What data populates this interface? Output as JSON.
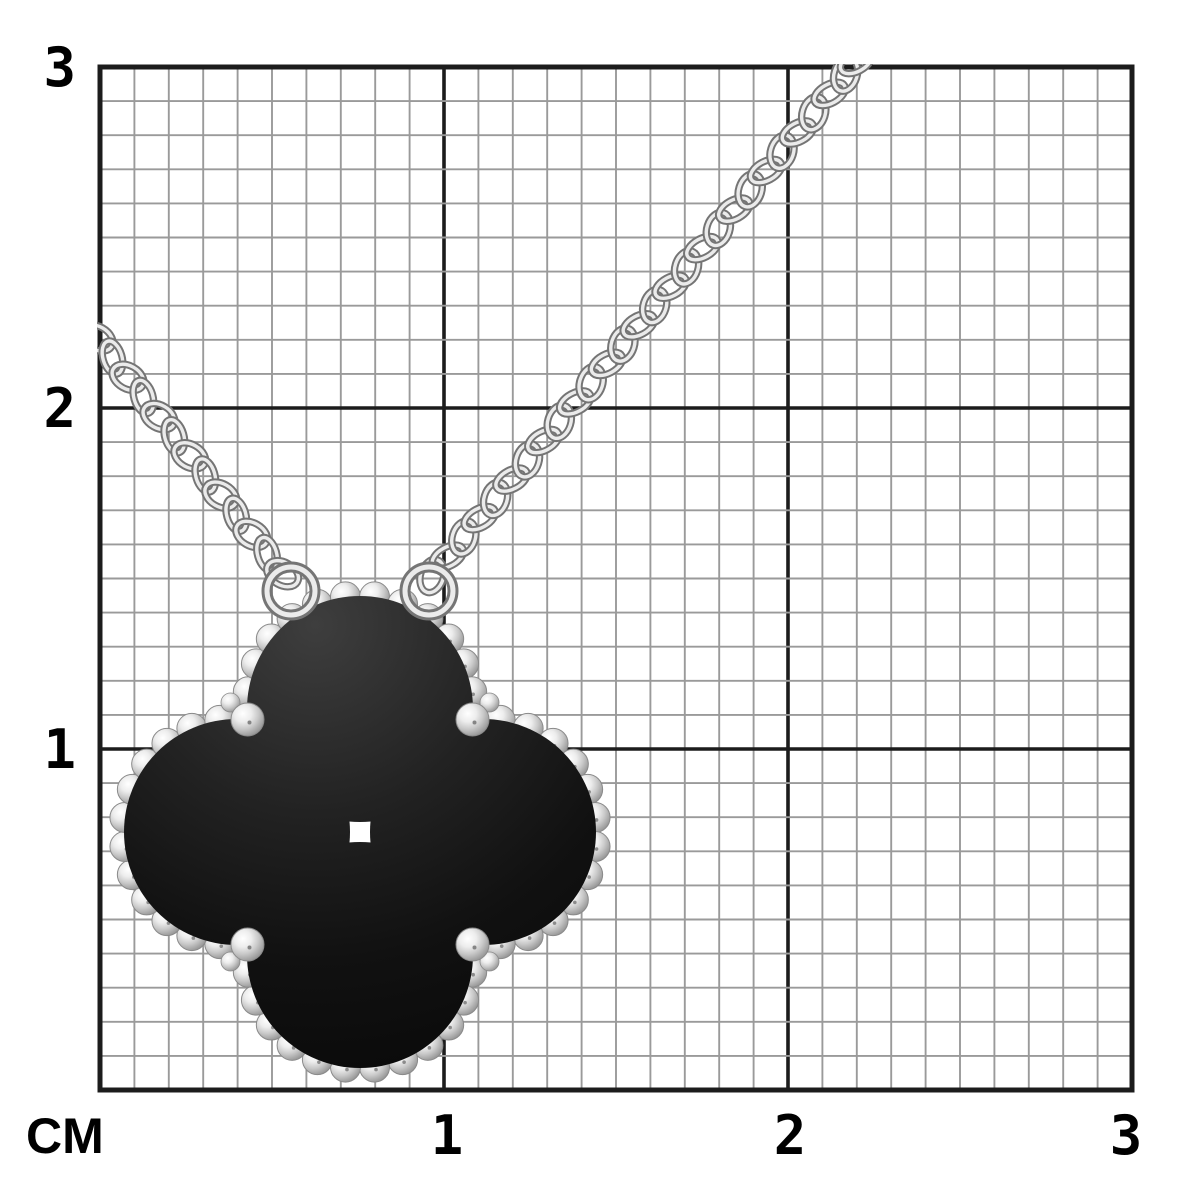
{
  "figure": {
    "kind": "product-measurement-photo",
    "subject": "clover-pendant-necklace-on-centimeter-grid"
  },
  "ruler": {
    "unit_label": "CM",
    "y_labels": [
      "3",
      "2",
      "1"
    ],
    "x_labels": [
      "1",
      "2",
      "3"
    ],
    "minor_divisions_per_cm": 10
  },
  "colors": {
    "background": "#ffffff",
    "grid_minor": "#9a9a9a",
    "grid_major": "#1c1c1c",
    "label": "#000000",
    "silver_dark": "#757575",
    "silver_light": "#ebebeb",
    "bead_outline": "#8a8a8a",
    "onyx_light": "#3e3e3e",
    "onyx_dark": "#060606"
  }
}
